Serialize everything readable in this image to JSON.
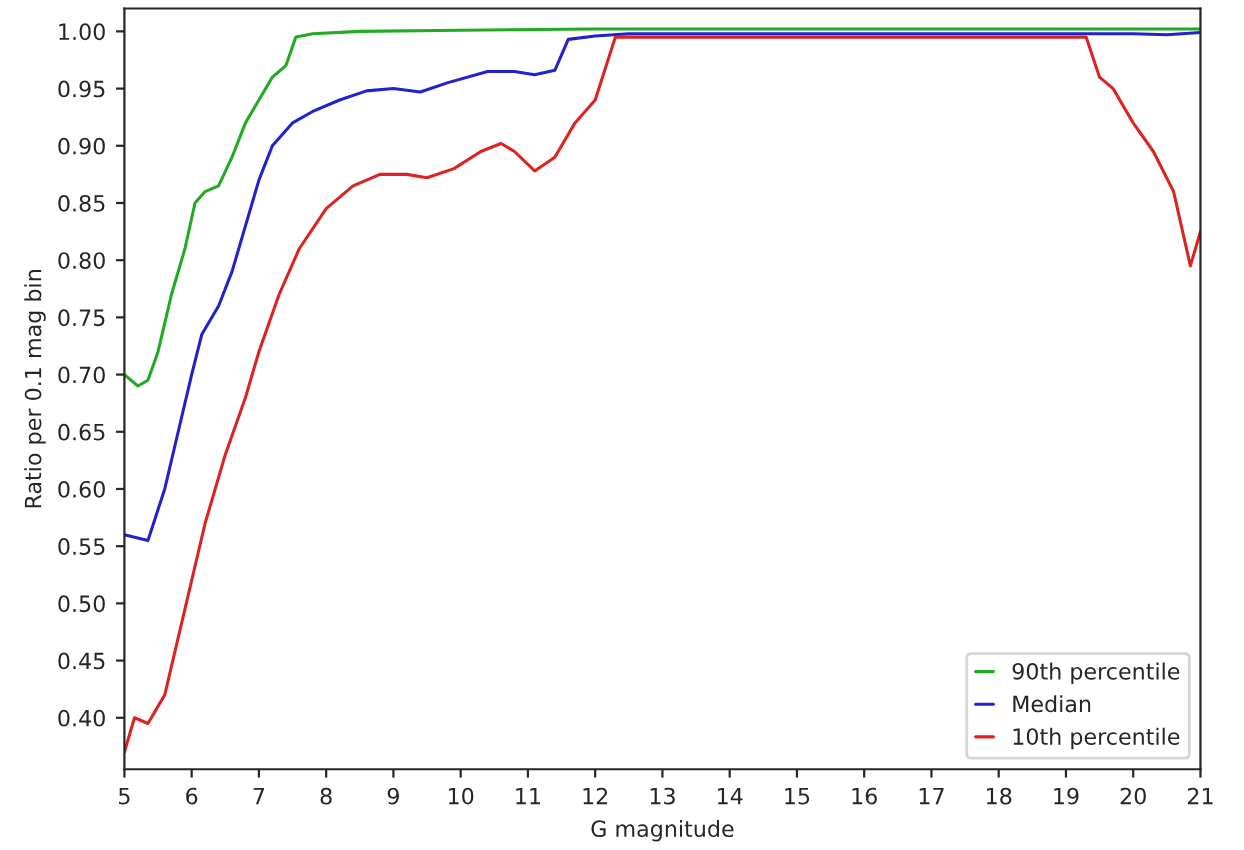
{
  "chart_data": {
    "type": "line",
    "xlabel": "G magnitude",
    "ylabel": "Ratio per 0.1 mag bin",
    "xlim": [
      5,
      21
    ],
    "xticks": [
      5,
      6,
      7,
      8,
      9,
      10,
      11,
      12,
      13,
      14,
      15,
      16,
      17,
      18,
      19,
      20,
      21
    ],
    "ylim": [
      0.355,
      1.02
    ],
    "yticks": [
      {
        "value": 0.4,
        "label": "0.40"
      },
      {
        "value": 0.45,
        "label": "0.45"
      },
      {
        "value": 0.5,
        "label": "0.50"
      },
      {
        "value": 0.55,
        "label": "0.55"
      },
      {
        "value": 0.6,
        "label": "0.60"
      },
      {
        "value": 0.65,
        "label": "0.65"
      },
      {
        "value": 0.7,
        "label": "0.70"
      },
      {
        "value": 0.75,
        "label": "0.75"
      },
      {
        "value": 0.8,
        "label": "0.80"
      },
      {
        "value": 0.85,
        "label": "0.85"
      },
      {
        "value": 0.9,
        "label": "0.90"
      },
      {
        "value": 0.95,
        "label": "0.95"
      },
      {
        "value": 1.0,
        "label": "1.00"
      }
    ],
    "grid": false,
    "legend": "bottom right",
    "line_style": "solid",
    "marker": "none",
    "series": [
      {
        "name": "90th percentile",
        "color": "#22aa22",
        "x": [
          5.0,
          5.2,
          5.35,
          5.5,
          5.7,
          5.9,
          6.05,
          6.2,
          6.4,
          6.6,
          6.8,
          7.0,
          7.2,
          7.4,
          7.55,
          7.8,
          8.5,
          10,
          12,
          21
        ],
        "values": [
          0.7,
          0.69,
          0.695,
          0.72,
          0.77,
          0.81,
          0.85,
          0.86,
          0.865,
          0.89,
          0.92,
          0.94,
          0.96,
          0.97,
          0.995,
          0.998,
          1.0,
          1.001,
          1.002,
          1.002
        ]
      },
      {
        "name": "Median",
        "color": "#2222cc",
        "x": [
          5.0,
          5.35,
          5.6,
          5.8,
          6.0,
          6.15,
          6.4,
          6.6,
          6.8,
          7.0,
          7.2,
          7.5,
          7.8,
          8.2,
          8.6,
          9.0,
          9.4,
          9.8,
          10.4,
          10.8,
          11.1,
          11.4,
          11.6,
          12.0,
          12.5,
          19,
          20,
          20.5,
          21
        ],
        "values": [
          0.56,
          0.555,
          0.6,
          0.65,
          0.7,
          0.735,
          0.76,
          0.79,
          0.83,
          0.87,
          0.9,
          0.92,
          0.93,
          0.94,
          0.948,
          0.95,
          0.947,
          0.955,
          0.965,
          0.965,
          0.962,
          0.966,
          0.993,
          0.996,
          0.998,
          0.998,
          0.998,
          0.997,
          0.999
        ]
      },
      {
        "name": "10th percentile",
        "color": "#dd2222",
        "x": [
          5.0,
          5.15,
          5.35,
          5.6,
          5.8,
          6.0,
          6.2,
          6.5,
          6.8,
          7.0,
          7.3,
          7.6,
          8.0,
          8.4,
          8.8,
          9.2,
          9.5,
          9.9,
          10.3,
          10.6,
          10.8,
          11.1,
          11.4,
          11.7,
          12.0,
          12.3,
          19.3,
          19.5,
          19.7,
          20.0,
          20.3,
          20.6,
          20.85,
          21
        ],
        "values": [
          0.37,
          0.4,
          0.395,
          0.42,
          0.47,
          0.52,
          0.57,
          0.63,
          0.68,
          0.72,
          0.77,
          0.81,
          0.845,
          0.865,
          0.875,
          0.875,
          0.872,
          0.88,
          0.895,
          0.902,
          0.895,
          0.878,
          0.89,
          0.92,
          0.94,
          0.995,
          0.995,
          0.96,
          0.95,
          0.92,
          0.895,
          0.86,
          0.795,
          0.825
        ]
      }
    ]
  }
}
